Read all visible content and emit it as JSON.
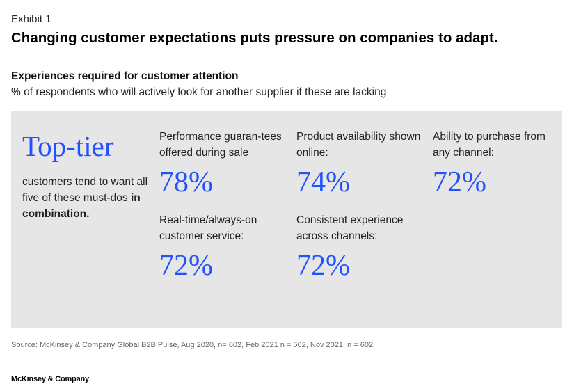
{
  "header": {
    "exhibit": "Exhibit 1",
    "title": "Changing customer expectations puts pressure on companies to adapt.",
    "subtitle": "Experiences required for customer attention",
    "description": "% of respondents who will actively look for another supplier if these are lacking"
  },
  "panel": {
    "headline": "Top-tier",
    "intro_text": "customers tend to want all five of these must-dos ",
    "intro_bold": "in combination.",
    "accent_color": "#2251ff",
    "background_color": "#e6e6e6",
    "items": [
      {
        "label": "Performance guaran-tees offered during sale",
        "value": "78%"
      },
      {
        "label": "Product availability shown online:",
        "value": "74%"
      },
      {
        "label": "Ability to purchase from any channel:",
        "value": "72%"
      },
      {
        "label": "Real-time/always-on customer service:",
        "value": "72%"
      },
      {
        "label": "Consistent experience across channels:",
        "value": "72%"
      }
    ]
  },
  "footer": {
    "source": "Source: McKinsey & Company Global B2B Pulse, Aug 2020, n= 602, Feb 2021 n = 562, Nov 2021, n = 602",
    "logo": "McKinsey & Company"
  }
}
